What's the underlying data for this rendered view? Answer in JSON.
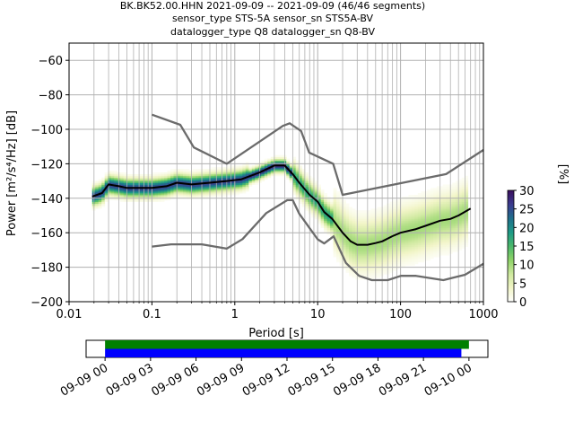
{
  "figure": {
    "title_lines": [
      "BK.BK52.00.HHN   2021-09-09 -- 2021-09-09  (46/46 segments)",
      "sensor_type STS-5A sensor_sn STS5A-BV",
      "datalogger_type Q8 datalogger_sn Q8-BV"
    ]
  },
  "chart_data": [
    {
      "type": "heatmap",
      "title": "BK.BK52.00.HHN   2021-09-09 -- 2021-09-09  (46/46 segments)",
      "xlabel": "Period [s]",
      "ylabel": "Power [m²/s⁴/Hz] [dB]",
      "xscale": "log",
      "xlim": [
        0.01,
        1000
      ],
      "ylim": [
        -200,
        -50
      ],
      "xticks": [
        0.01,
        0.1,
        1,
        10,
        100,
        1000
      ],
      "xtick_labels": [
        "0.01",
        "0.1",
        "1",
        "10",
        "100",
        "1000"
      ],
      "yticks": [
        -200,
        -180,
        -160,
        -140,
        -120,
        -100,
        -80,
        -60
      ],
      "ytick_labels": [
        "−200",
        "−180",
        "−160",
        "−140",
        "−120",
        "−100",
        "−80",
        "−60"
      ],
      "grid": true,
      "colorbar": {
        "label": "[%]",
        "range": [
          0,
          30
        ],
        "ticks": [
          0,
          5,
          10,
          15,
          20,
          25,
          30
        ],
        "tick_labels": [
          "0",
          "5",
          "10",
          "15",
          "20",
          "25",
          "30"
        ],
        "colormap": [
          "#ffffff",
          "#f2f5c8",
          "#cfe9a0",
          "#8fd368",
          "#4cb86a",
          "#1e9a86",
          "#1f6f8b",
          "#3b3b8f",
          "#3a0f5e"
        ]
      },
      "series": [
        {
          "name": "",
          "role": "mode",
          "color": "#000000",
          "x": [
            0.019,
            0.025,
            0.03,
            0.04,
            0.05,
            0.07,
            0.1,
            0.15,
            0.2,
            0.3,
            0.5,
            0.8,
            1.2,
            2,
            3,
            4,
            5,
            6,
            8,
            10,
            12,
            15,
            20,
            25,
            30,
            40,
            50,
            60,
            80,
            100,
            150,
            200,
            300,
            400,
            500,
            700
          ],
          "y": [
            -139,
            -137,
            -132,
            -133,
            -134,
            -134,
            -134,
            -133,
            -131,
            -132,
            -131,
            -130,
            -129,
            -125,
            -121,
            -121,
            -126,
            -131,
            -138,
            -142,
            -148,
            -152,
            -160,
            -165,
            -167,
            -167,
            -166,
            -165,
            -162,
            -160,
            -158,
            -156,
            -153,
            -152,
            -150,
            -146
          ]
        },
        {
          "name": "",
          "role": "noise-model-high",
          "color": "#6b6b6b",
          "x": [
            0.1,
            0.22,
            0.32,
            0.8,
            3.8,
            4.6,
            6.3,
            7.9,
            15.4,
            20,
            354.8,
            1000
          ],
          "y": [
            -91.5,
            -97.4,
            -110.5,
            -120,
            -98,
            -96.5,
            -101,
            -113.5,
            -120,
            -138,
            -126,
            -112
          ]
        },
        {
          "name": "",
          "role": "noise-model-low",
          "color": "#6b6b6b",
          "x": [
            0.1,
            0.17,
            0.4,
            0.8,
            1.24,
            2.4,
            4.3,
            5,
            6,
            10,
            12,
            15.6,
            21.9,
            31.6,
            45,
            70,
            101,
            154,
            328,
            600,
            1000
          ],
          "y": [
            -168,
            -166.7,
            -166.7,
            -169.2,
            -163.7,
            -148.6,
            -141.1,
            -141.1,
            -149,
            -163.8,
            -166.2,
            -162.1,
            -177.5,
            -185,
            -187.5,
            -187.5,
            -185,
            -185,
            -187.5,
            -184.4,
            -178
          ]
        }
      ]
    },
    {
      "type": "bar",
      "title": "",
      "x_tick_labels": [
        "09-09 00",
        "09-09 03",
        "09-09 06",
        "09-09 09",
        "09-09 12",
        "09-09 15",
        "09-09 18",
        "09-09 21",
        "09-10 00"
      ],
      "xlim_hours": [
        -1.25,
        25.25
      ],
      "series": [
        {
          "name": "",
          "color": "#008000",
          "start_hour": 0.0,
          "end_hour": 24.0
        },
        {
          "name": "",
          "color": "#0000ff",
          "start_hour": 0.0,
          "end_hour": 23.5
        }
      ]
    }
  ]
}
